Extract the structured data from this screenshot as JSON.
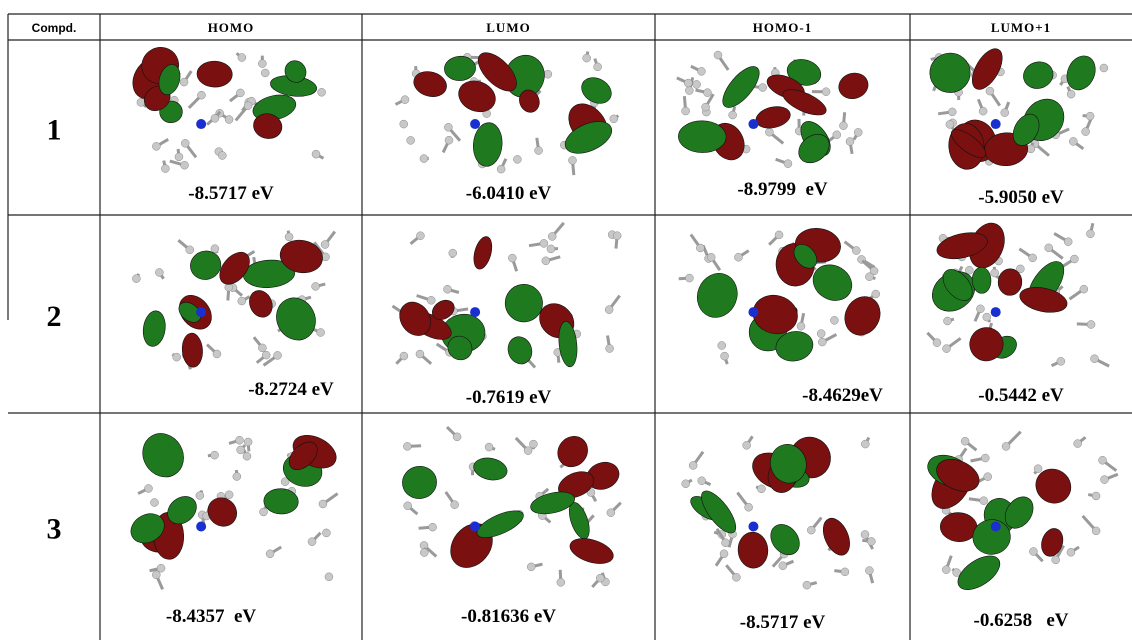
{
  "table": {
    "headers": [
      "Compd.",
      "HOMO",
      "LUMO",
      "HOMO-1",
      "LUMO+1"
    ],
    "rows": [
      [
        "1",
        "-8.5717 eV",
        "-6.0410 eV",
        "-8.9799  eV",
        "-5.9050 eV"
      ],
      [
        "2",
        "-8.2724 eV",
        "-0.7619 eV",
        "-8.4629eV",
        "-0.5442 eV"
      ],
      [
        "3",
        "-8.4357  eV",
        "-0.81636 eV",
        "-8.5717 eV",
        "-0.6258   eV"
      ]
    ]
  }
}
